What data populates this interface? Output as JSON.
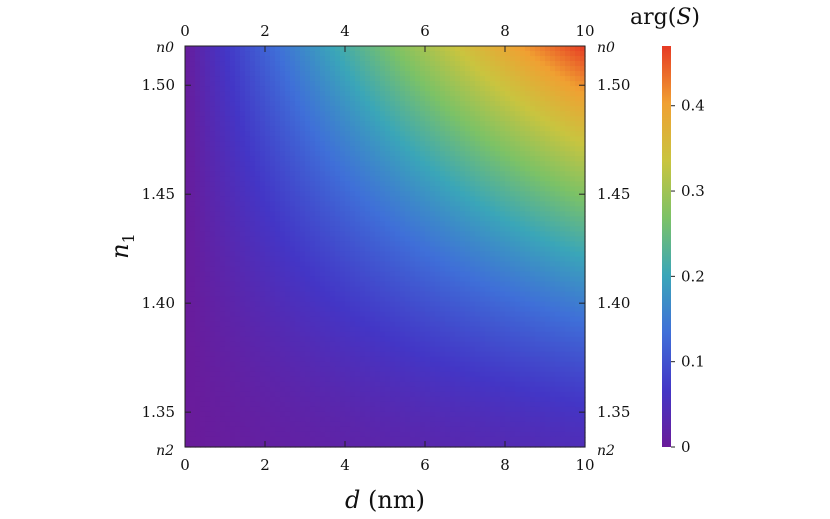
{
  "chart_data": {
    "type": "heatmap",
    "title": "",
    "xlabel": "d (nm)",
    "xlabel_parts": {
      "var": "d",
      "unit": " (nm)"
    },
    "ylabel": "n1",
    "ylabel_parts": {
      "var": "n",
      "sub": "1"
    },
    "xlim": [
      0,
      10
    ],
    "ylim": [
      1.334,
      1.518
    ],
    "x_ticks": [
      0,
      2,
      4,
      6,
      8,
      10
    ],
    "x_tick_labels": [
      "0",
      "2",
      "4",
      "6",
      "8",
      "10"
    ],
    "y_ticks": [
      1.35,
      1.4,
      1.45,
      1.5
    ],
    "y_tick_labels": [
      "1.35",
      "1.40",
      "1.45",
      "1.50"
    ],
    "y_end_labels": {
      "top": "n0",
      "bottom": "n2"
    },
    "grid": false,
    "colorbar": {
      "title": "arg(S)",
      "title_parts": {
        "pre": "arg(",
        "var": "S",
        "post": ")"
      },
      "range": [
        0,
        0.47
      ],
      "ticks": [
        0,
        0.1,
        0.2,
        0.3,
        0.4
      ],
      "tick_labels": [
        "0",
        "0.1",
        "0.2",
        "0.3",
        "0.4"
      ],
      "colormap": [
        "#6a1b9a",
        "#4336c6",
        "#3f6fd8",
        "#3aa6b8",
        "#7cc266",
        "#c9c43f",
        "#f0a032",
        "#e63a24"
      ]
    },
    "field": {
      "description_values": [
        {
          "d": 0,
          "n1": 1.334,
          "value": 0.0
        },
        {
          "d": 0,
          "n1": 1.518,
          "value": 0.0
        },
        {
          "d": 10,
          "n1": 1.334,
          "value": 0.05
        },
        {
          "d": 10,
          "n1": 1.4,
          "value": 0.17
        },
        {
          "d": 10,
          "n1": 1.45,
          "value": 0.3
        },
        {
          "d": 10,
          "n1": 1.518,
          "value": 0.47
        },
        {
          "d": 5,
          "n1": 1.518,
          "value": 0.25
        }
      ]
    }
  }
}
